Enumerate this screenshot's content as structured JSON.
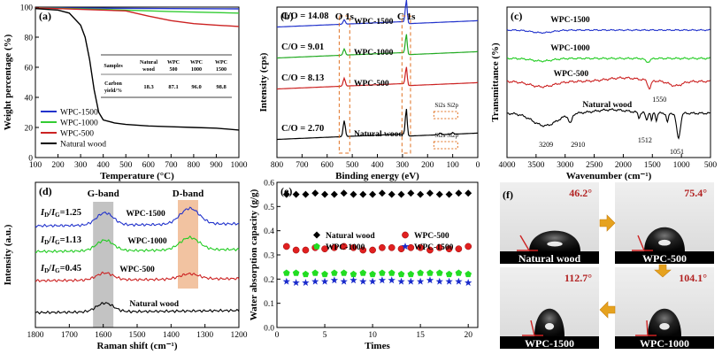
{
  "chart_data": [
    {
      "panel": "(a)",
      "type": "line",
      "xlabel": "Temperature (°C)",
      "ylabel": "Weight percentage (%)",
      "xlim": [
        100,
        1000
      ],
      "ylim": [
        0,
        100
      ],
      "xticks": [
        "100",
        "200",
        "300",
        "400",
        "500",
        "600",
        "700",
        "800",
        "900",
        "1000"
      ],
      "yticks": [
        "0",
        "20",
        "40",
        "60",
        "80",
        "100"
      ],
      "legend": [
        "WPC-1500",
        "WPC-1000",
        "WPC-500",
        "Natural wood"
      ],
      "colors": [
        "#2233cc",
        "#33cc33",
        "#cc2222",
        "#000000"
      ],
      "series": [
        {
          "name": "WPC-1500",
          "x": [
            100,
            400,
            700,
            1000
          ],
          "y": [
            99.6,
            99.3,
            99,
            98.8
          ]
        },
        {
          "name": "WPC-1000",
          "x": [
            100,
            400,
            700,
            1000
          ],
          "y": [
            99.6,
            98.5,
            97,
            96
          ]
        },
        {
          "name": "WPC-500",
          "x": [
            100,
            500,
            600,
            700,
            800,
            900,
            1000
          ],
          "y": [
            99.5,
            97.5,
            94,
            91,
            89,
            88,
            87.1
          ]
        },
        {
          "name": "Natural wood",
          "x": [
            100,
            200,
            250,
            300,
            320,
            340,
            360,
            380,
            400,
            450,
            500,
            600,
            700,
            800,
            900,
            1000
          ],
          "y": [
            99,
            98,
            96,
            88,
            80,
            65,
            45,
            30,
            25,
            23,
            22,
            21,
            20.5,
            20,
            19.5,
            18.3
          ]
        }
      ],
      "table": {
        "headers": [
          "Samples",
          "Natural wood",
          "WPC 500",
          "WPC 1000",
          "WPC 1500"
        ],
        "row_label": "Carbon yield/%",
        "values": [
          "18.3",
          "87.1",
          "96.0",
          "98.8"
        ]
      }
    },
    {
      "panel": "(b)",
      "type": "line",
      "xlabel": "Binding energy (eV)",
      "ylabel": "Intensity (cps)",
      "xlim": [
        800,
        0
      ],
      "xticks": [
        "800",
        "700",
        "600",
        "500",
        "400",
        "300",
        "200",
        "100",
        "0"
      ],
      "legend": [
        "WPC-1500",
        "WPC-1000",
        "WPC-500",
        "Natural wood"
      ],
      "peaks": [
        "O 1s",
        "C 1s"
      ],
      "ratios": [
        "C/O = 14.08",
        "C/O = 9.01",
        "C/O = 8.13",
        "C/O = 2.70"
      ],
      "minor_peaks": [
        "Si2s",
        "Si2p"
      ]
    },
    {
      "panel": "(c)",
      "type": "line",
      "xlabel": "Wavenumber (cm⁻¹)",
      "ylabel": "Transmittance (%)",
      "xlim": [
        4000,
        500
      ],
      "xticks": [
        "4000",
        "3500",
        "3000",
        "2500",
        "2000",
        "1500",
        "1000",
        "500"
      ],
      "legend": [
        "WPC-1500",
        "WPC-1000",
        "WPC-500",
        "Natural wood"
      ],
      "annotations": [
        "1550",
        "3209",
        "2910",
        "1512",
        "1051"
      ]
    },
    {
      "panel": "(d)",
      "type": "line",
      "xlabel": "Raman shift (cm⁻¹)",
      "ylabel": "Intensity (a.u.)",
      "xlim": [
        1800,
        1200
      ],
      "xticks": [
        "1800",
        "1700",
        "1600",
        "1500",
        "1400",
        "1300",
        "1200"
      ],
      "bands": [
        "G-band",
        "D-band"
      ],
      "legend": [
        "WPC-1500",
        "WPC-1000",
        "WPC-500",
        "Natural wood"
      ],
      "ratios": [
        "1.25",
        "1.13",
        "0.45"
      ]
    },
    {
      "panel": "(e)",
      "type": "scatter",
      "xlabel": "Times",
      "ylabel": "Water absorption capacity (g/g)",
      "xlim": [
        0,
        21
      ],
      "ylim": [
        0.0,
        0.6
      ],
      "xticks": [
        "0",
        "5",
        "10",
        "15",
        "20"
      ],
      "yticks": [
        "0.0",
        "0.1",
        "0.2",
        "0.3",
        "0.4",
        "0.5",
        "0.6"
      ],
      "legend": [
        "Natural wood",
        "WPC-500",
        "WPC-1000",
        "WPC-1500"
      ],
      "series": [
        {
          "name": "Natural wood",
          "x": [
            1,
            2,
            3,
            4,
            5,
            6,
            7,
            8,
            9,
            10,
            11,
            12,
            13,
            14,
            15,
            16,
            17,
            18,
            19,
            20
          ],
          "y": [
            0.55,
            0.55,
            0.55,
            0.555,
            0.55,
            0.55,
            0.555,
            0.55,
            0.55,
            0.55,
            0.555,
            0.55,
            0.55,
            0.555,
            0.55,
            0.555,
            0.55,
            0.55,
            0.555,
            0.555
          ]
        },
        {
          "name": "WPC-500",
          "x": [
            1,
            2,
            3,
            4,
            5,
            6,
            7,
            8,
            9,
            10,
            11,
            12,
            13,
            14,
            15,
            16,
            17,
            18,
            19,
            20
          ],
          "y": [
            0.335,
            0.32,
            0.32,
            0.33,
            0.325,
            0.33,
            0.335,
            0.33,
            0.32,
            0.32,
            0.33,
            0.33,
            0.325,
            0.33,
            0.33,
            0.32,
            0.33,
            0.325,
            0.325,
            0.335
          ]
        },
        {
          "name": "WPC-1000",
          "x": [
            1,
            2,
            3,
            4,
            5,
            6,
            7,
            8,
            9,
            10,
            11,
            12,
            13,
            14,
            15,
            16,
            17,
            18,
            19,
            20
          ],
          "y": [
            0.225,
            0.225,
            0.22,
            0.225,
            0.22,
            0.225,
            0.225,
            0.22,
            0.225,
            0.22,
            0.225,
            0.225,
            0.22,
            0.22,
            0.225,
            0.225,
            0.225,
            0.22,
            0.225,
            0.22
          ]
        },
        {
          "name": "WPC-1500",
          "x": [
            1,
            2,
            3,
            4,
            5,
            6,
            7,
            8,
            9,
            10,
            11,
            12,
            13,
            14,
            15,
            16,
            17,
            18,
            19,
            20
          ],
          "y": [
            0.19,
            0.185,
            0.185,
            0.19,
            0.19,
            0.195,
            0.19,
            0.195,
            0.19,
            0.19,
            0.195,
            0.195,
            0.19,
            0.19,
            0.19,
            0.195,
            0.19,
            0.19,
            0.19,
            0.185
          ]
        }
      ]
    },
    {
      "panel": "(f)",
      "type": "image-grid",
      "cells": [
        {
          "label": "Natural  wood",
          "angle": "46.2°"
        },
        {
          "label": "WPC-500",
          "angle": "75.4°"
        },
        {
          "label": "WPC-1500",
          "angle": "112.7°"
        },
        {
          "label": "WPC-1000",
          "angle": "104.1°"
        }
      ]
    }
  ]
}
